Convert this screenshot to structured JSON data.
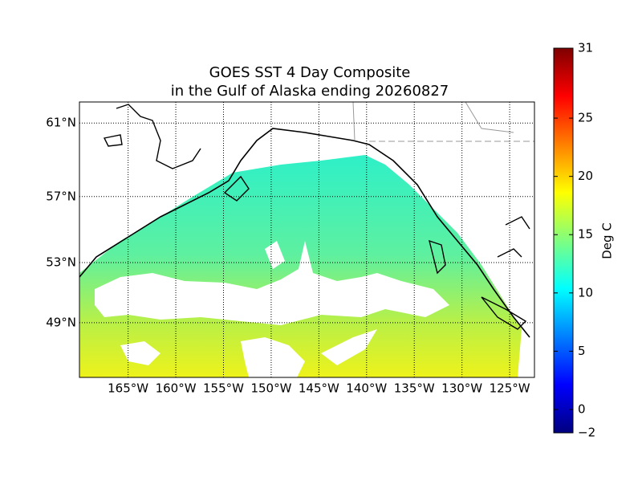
{
  "map": {
    "title": [
      "GOES SST 4 Day Composite",
      "in the Gulf of Alaska ending 20260827"
    ],
    "lat_range": [
      45.06,
      62.06
    ],
    "lon_range": [
      -170.1,
      -122.4
    ],
    "lat_ticks": [
      {
        "value": 61,
        "label": "61°N"
      },
      {
        "value": 57,
        "label": "57°N"
      },
      {
        "value": 53,
        "label": "53°N"
      },
      {
        "value": 49,
        "label": "49°N"
      }
    ],
    "lon_ticks": [
      {
        "value": -165,
        "label": "165°W"
      },
      {
        "value": -160,
        "label": "160°W"
      },
      {
        "value": -155,
        "label": "155°W"
      },
      {
        "value": -150,
        "label": "150°W"
      },
      {
        "value": -145,
        "label": "145°W"
      },
      {
        "value": -140,
        "label": "140°W"
      },
      {
        "value": -135,
        "label": "135°W"
      },
      {
        "value": -130,
        "label": "130°W"
      },
      {
        "value": -125,
        "label": "125°W"
      }
    ],
    "colorbar": {
      "label": "Deg C",
      "range": [
        -2,
        31
      ],
      "ticks": [
        {
          "value": -2,
          "label": "−2"
        },
        0,
        5,
        10,
        15,
        20,
        25,
        31
      ]
    }
  }
}
